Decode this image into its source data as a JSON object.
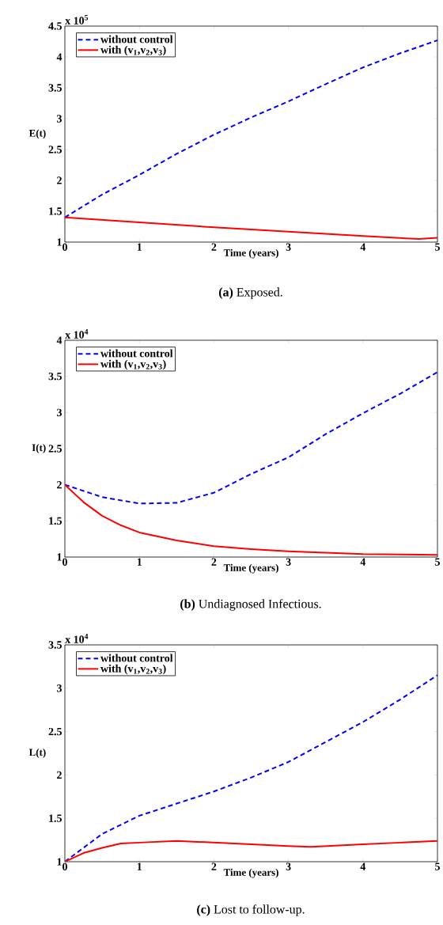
{
  "chart_data": [
    {
      "type": "line",
      "xlabel": "Time (years)",
      "ylabel": "E(t)",
      "annotations": [
        "x 10$^{5}$",
        "**(a)** Exposed."
      ],
      "xlim": [
        0,
        5
      ],
      "ylim": [
        1,
        4.5
      ],
      "xticks": [
        0,
        1,
        2,
        3,
        4,
        5
      ],
      "yticks": [
        1,
        1.5,
        2,
        2.5,
        3,
        3.5,
        4,
        4.5
      ],
      "legend": "top left",
      "series": [
        {
          "name": "without control",
          "color": "#0000ff",
          "line_style": "dashed",
          "x": [
            0,
            0.5,
            1,
            1.5,
            2,
            2.5,
            3,
            3.5,
            4,
            4.5,
            5
          ],
          "values": [
            1.4,
            1.77,
            2.09,
            2.43,
            2.74,
            3.02,
            3.28,
            3.56,
            3.83,
            4.06,
            4.27
          ]
        },
        {
          "name": "with (v$_{1}$,v$_{2}$,v$_{3}$)",
          "color": "#ff0000",
          "line_style": "solid",
          "x": [
            0,
            1,
            2,
            3,
            4,
            4.75,
            5
          ],
          "values": [
            1.4,
            1.32,
            1.24,
            1.17,
            1.1,
            1.05,
            1.07
          ]
        }
      ]
    },
    {
      "type": "line",
      "xlabel": "Time (years)",
      "ylabel": "I(t)",
      "annotations": [
        "x 10$^{4}$",
        "**(b)** Undiagnosed Infectious."
      ],
      "xlim": [
        0,
        5
      ],
      "ylim": [
        1,
        4
      ],
      "xticks": [
        0,
        1,
        2,
        3,
        4,
        5
      ],
      "yticks": [
        1,
        1.5,
        2,
        2.5,
        3,
        3.5,
        4
      ],
      "legend": "top left",
      "series": [
        {
          "name": "without control",
          "color": "#0000ff",
          "line_style": "dashed",
          "x": [
            0,
            0.5,
            1,
            1.5,
            2,
            2.5,
            3,
            3.5,
            4,
            4.5,
            5
          ],
          "values": [
            2.0,
            1.83,
            1.74,
            1.75,
            1.89,
            2.15,
            2.38,
            2.7,
            2.99,
            3.26,
            3.56
          ]
        },
        {
          "name": "with (v$_{1}$,v$_{2}$,v$_{3}$)",
          "color": "#ff0000",
          "line_style": "solid",
          "x": [
            0,
            0.25,
            0.5,
            0.75,
            1,
            1.5,
            2,
            2.5,
            3,
            4,
            5
          ],
          "values": [
            2.0,
            1.76,
            1.57,
            1.44,
            1.34,
            1.23,
            1.15,
            1.11,
            1.08,
            1.04,
            1.03
          ]
        }
      ]
    },
    {
      "type": "line",
      "xlabel": "Time (years)",
      "ylabel": "L(t)",
      "annotations": [
        "x 10$^{4}$",
        "**(c)** Lost to follow-up."
      ],
      "xlim": [
        0,
        5
      ],
      "ylim": [
        1,
        3.5
      ],
      "xticks": [
        0,
        1,
        2,
        3,
        4,
        5
      ],
      "yticks": [
        1,
        1.5,
        2,
        2.5,
        3,
        3.5
      ],
      "legend": "top left",
      "series": [
        {
          "name": "without control",
          "color": "#0000ff",
          "line_style": "dashed",
          "x": [
            0,
            0.5,
            1,
            1.5,
            2,
            2.5,
            3,
            3.5,
            4,
            4.5,
            5
          ],
          "values": [
            1.0,
            1.32,
            1.53,
            1.67,
            1.81,
            1.97,
            2.15,
            2.38,
            2.61,
            2.87,
            3.15
          ]
        },
        {
          "name": "with (v$_{1}$,v$_{2}$,v$_{3}$)",
          "color": "#ff0000",
          "line_style": "solid",
          "x": [
            0,
            0.25,
            0.5,
            0.75,
            1,
            1.5,
            2,
            2.5,
            3,
            3.3,
            4,
            4.5,
            5
          ],
          "values": [
            1.0,
            1.1,
            1.16,
            1.21,
            1.22,
            1.24,
            1.22,
            1.2,
            1.18,
            1.17,
            1.2,
            1.22,
            1.24
          ]
        }
      ]
    }
  ]
}
